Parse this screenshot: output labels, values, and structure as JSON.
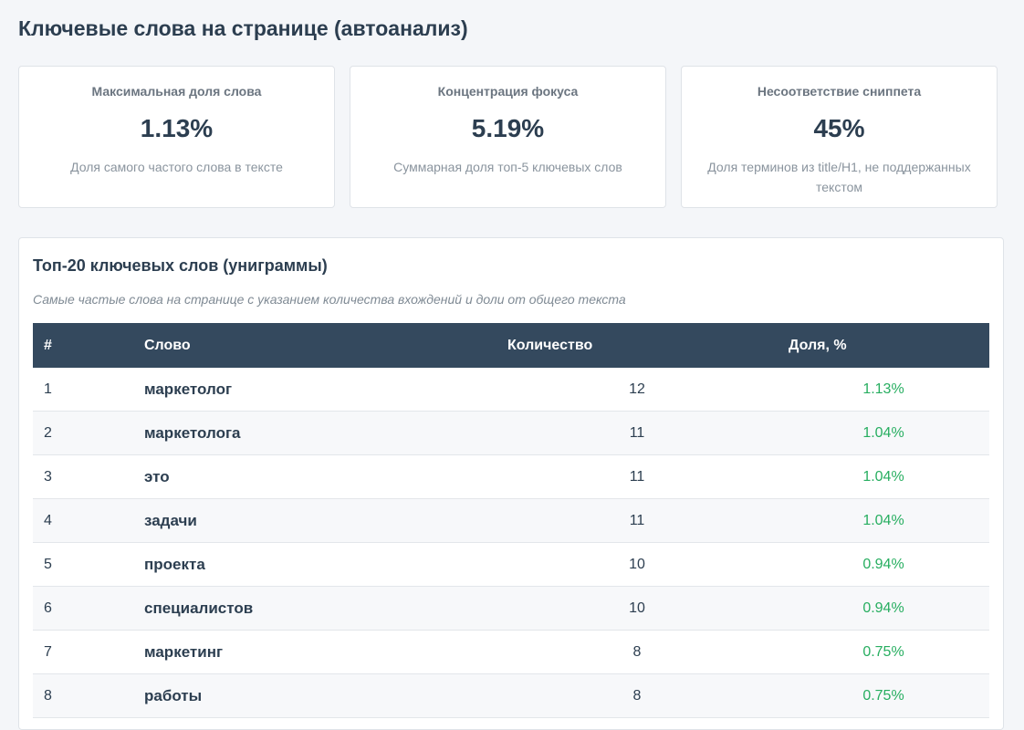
{
  "header": {
    "title": "Ключевые слова на странице (автоанализ)"
  },
  "cards": [
    {
      "label": "Максимальная доля слова",
      "value": "1.13%",
      "note": "Доля самого частого слова в тексте"
    },
    {
      "label": "Концентрация фокуса",
      "value": "5.19%",
      "note": "Суммарная доля топ-5 ключевых слов"
    },
    {
      "label": "Несоответствие сниппета",
      "value": "45%",
      "note": "Доля терминов из title/H1, не поддержанных текстом"
    }
  ],
  "table": {
    "title": "Топ-20 ключевых слов (униграммы)",
    "subtitle": "Самые частые слова на странице с указанием количества вхождений и доли от общего текста",
    "columns": [
      "#",
      "Слово",
      "Количество",
      "Доля, %"
    ],
    "rows": [
      [
        "1",
        "маркетолог",
        "12",
        "1.13%"
      ],
      [
        "2",
        "маркетолога",
        "11",
        "1.04%"
      ],
      [
        "3",
        "это",
        "11",
        "1.04%"
      ],
      [
        "4",
        "задачи",
        "11",
        "1.04%"
      ],
      [
        "5",
        "проекта",
        "10",
        "0.94%"
      ],
      [
        "6",
        "специалистов",
        "10",
        "0.94%"
      ],
      [
        "7",
        "маркетинг",
        "8",
        "0.75%"
      ],
      [
        "8",
        "работы",
        "8",
        "0.75%"
      ]
    ]
  }
}
